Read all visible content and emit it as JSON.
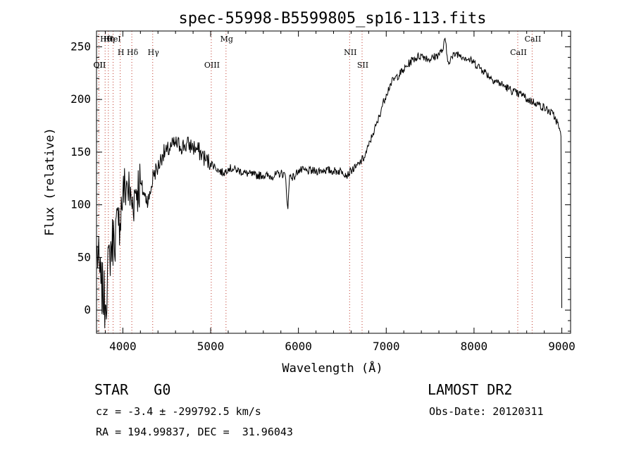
{
  "chart_data": {
    "type": "line",
    "title": "spec-55998-B5599805_sp16-113.fits",
    "xlabel": "Wavelength (Å)",
    "ylabel": "Flux (relative)",
    "xlim": [
      3700,
      9100
    ],
    "ylim": [
      -22,
      265
    ],
    "xticks": [
      4000,
      5000,
      6000,
      7000,
      8000,
      9000
    ],
    "yticks": [
      0,
      50,
      100,
      150,
      200,
      250
    ],
    "grid": false,
    "series": [
      {
        "x": [
          3700,
          3750,
          3800,
          3850,
          3900,
          3950,
          4000,
          4050,
          4100,
          4150,
          4200,
          4250,
          4300,
          4350,
          4400,
          4450,
          4500,
          4550,
          4600,
          4650,
          4700,
          4750,
          4800,
          4850,
          4900,
          4950,
          5000,
          5050,
          5100,
          5150,
          5200,
          5250,
          5300,
          5400,
          5500,
          5600,
          5700,
          5800,
          5850,
          5880,
          5900,
          5950,
          6000,
          6100,
          6200,
          6300,
          6400,
          6500,
          6560,
          6600,
          6650,
          6700,
          6750,
          6800,
          6850,
          6900,
          6950,
          7000,
          7050,
          7100,
          7200,
          7300,
          7400,
          7500,
          7600,
          7650,
          7670,
          7700,
          7750,
          7800,
          7850,
          7900,
          8000,
          8100,
          8200,
          8300,
          8400,
          8500,
          8550,
          8600,
          8700,
          8800,
          8900,
          8950,
          8990,
          9000
        ],
        "y": [
          60,
          25,
          5,
          55,
          70,
          80,
          110,
          120,
          100,
          115,
          120,
          108,
          105,
          130,
          135,
          148,
          150,
          155,
          158,
          156,
          156,
          157,
          155,
          152,
          148,
          142,
          140,
          136,
          132,
          130,
          135,
          134,
          133,
          130,
          128,
          128,
          127,
          130,
          128,
          96,
          128,
          126,
          133,
          132,
          132,
          133,
          132,
          132,
          128,
          133,
          135,
          140,
          145,
          156,
          168,
          178,
          193,
          205,
          215,
          220,
          228,
          238,
          242,
          238,
          243,
          248,
          258,
          236,
          240,
          244,
          242,
          240,
          235,
          228,
          220,
          215,
          210,
          205,
          205,
          200,
          197,
          192,
          186,
          178,
          165,
          2
        ]
      }
    ],
    "lines": [
      {
        "label": "Hθ",
        "x": 3798
      },
      {
        "label": "H",
        "x": 3970
      },
      {
        "label": "OII",
        "x": 3727
      },
      {
        "label": "HeI",
        "x": 3889
      },
      {
        "label": "Hγ",
        "x": 4340
      },
      {
        "label": "OII",
        "x": 3727
      },
      {
        "label": "Hη",
        "x": 3835
      },
      {
        "label": "Hδ",
        "x": 4102
      },
      {
        "label": "OIII",
        "x": 5007
      },
      {
        "label": "Mg",
        "x": 5175
      },
      {
        "label": "NII",
        "x": 6583
      },
      {
        "label": "SII",
        "x": 6725
      },
      {
        "label": "CaII",
        "x": 8662
      },
      {
        "label": "CaII",
        "x": 8498
      }
    ]
  },
  "footer": {
    "class_label": "STAR   G0",
    "survey": "LAMOST DR2",
    "cz": "cz = -3.4 ± -299792.5 km/s",
    "obs_date": "Obs-Date: 20120311",
    "coords": "RA = 194.99837, DEC =  31.96043"
  }
}
